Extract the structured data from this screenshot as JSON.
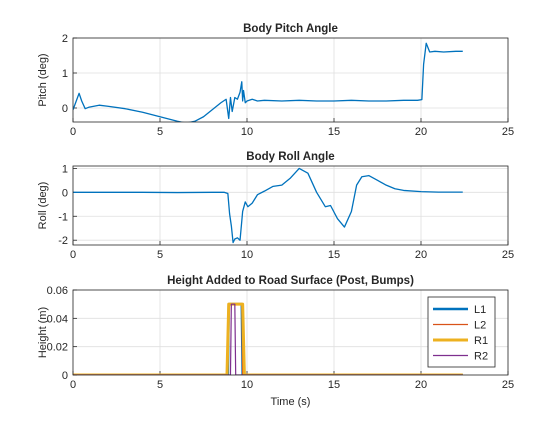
{
  "chart_data": [
    {
      "type": "line",
      "title": "Body Pitch Angle",
      "xlabel": "",
      "ylabel": "Pitch (deg)",
      "xlim": [
        0,
        25
      ],
      "ylim": [
        -0.4,
        2
      ],
      "xticks": [
        "0",
        "5",
        "10",
        "15",
        "20",
        "25"
      ],
      "yticks": [
        "0",
        "1",
        "2"
      ],
      "grid": true,
      "series": [
        {
          "color": "#0072BD",
          "x": [
            0,
            0.15,
            0.35,
            0.5,
            0.7,
            0.9,
            1.2,
            1.5,
            2,
            3,
            4,
            5,
            6,
            6.5,
            7,
            7.5,
            8,
            8.5,
            8.8,
            8.95,
            9.05,
            9.15,
            9.3,
            9.45,
            9.6,
            9.7,
            9.75,
            9.8,
            9.9,
            10,
            10.3,
            10.6,
            11,
            12,
            13,
            14,
            15,
            16,
            17,
            18,
            19,
            19.8,
            20.05,
            20.15,
            20.3,
            20.5,
            20.8,
            21.3,
            22,
            22.4
          ],
          "y": [
            -0.05,
            0.15,
            0.42,
            0.2,
            -0.02,
            0.02,
            0.05,
            0.08,
            0.05,
            -0.02,
            -0.12,
            -0.25,
            -0.38,
            -0.43,
            -0.38,
            -0.25,
            -0.05,
            0.15,
            0.25,
            -0.3,
            0.3,
            -0.1,
            0.3,
            0.25,
            0.45,
            0.75,
            0.2,
            0.5,
            0.15,
            0.2,
            0.25,
            0.2,
            0.22,
            0.2,
            0.22,
            0.2,
            0.2,
            0.22,
            0.2,
            0.2,
            0.22,
            0.22,
            0.24,
            1.25,
            1.85,
            1.6,
            1.62,
            1.6,
            1.62,
            1.62
          ]
        }
      ]
    },
    {
      "type": "line",
      "title": "Body Roll Angle",
      "xlabel": "",
      "ylabel": "Roll (deg)",
      "xlim": [
        0,
        25
      ],
      "ylim": [
        -2.2,
        1.1
      ],
      "xticks": [
        "0",
        "5",
        "10",
        "15",
        "20",
        "25"
      ],
      "yticks": [
        "-2",
        "-1",
        "0",
        "1"
      ],
      "grid": true,
      "series": [
        {
          "color": "#0072BD",
          "x": [
            0,
            2,
            4,
            6,
            8,
            8.7,
            8.9,
            9.0,
            9.1,
            9.2,
            9.3,
            9.45,
            9.6,
            9.75,
            9.9,
            10.05,
            10.3,
            10.6,
            11,
            11.5,
            12,
            12.5,
            13,
            13.5,
            14,
            14.5,
            14.8,
            15.2,
            15.6,
            16,
            16.3,
            16.6,
            17,
            17.5,
            18,
            18.5,
            19,
            20,
            21,
            22,
            22.4
          ],
          "y": [
            0,
            0,
            0,
            -0.01,
            0,
            0,
            -0.05,
            -0.9,
            -1.4,
            -2.1,
            -1.95,
            -1.9,
            -2.0,
            -0.8,
            -0.4,
            -0.6,
            -0.45,
            -0.1,
            0.05,
            0.25,
            0.3,
            0.6,
            1.0,
            0.8,
            0.0,
            -0.6,
            -0.55,
            -1.1,
            -1.45,
            -0.8,
            0.3,
            0.65,
            0.7,
            0.5,
            0.3,
            0.15,
            0.08,
            0.03,
            0.01,
            0.01,
            0.01
          ]
        }
      ]
    },
    {
      "type": "line",
      "title": "Height Added to Road Surface (Post, Bumps)",
      "xlabel": "Time (s)",
      "ylabel": "Height (m)",
      "xlim": [
        0,
        25
      ],
      "ylim": [
        0,
        0.06
      ],
      "xticks": [
        "0",
        "5",
        "10",
        "15",
        "20",
        "25"
      ],
      "yticks": [
        "0",
        "0.02",
        "0.04",
        "0.06"
      ],
      "grid": true,
      "legend": "right",
      "series": [
        {
          "name": "L1",
          "color": "#0072BD",
          "x": [
            0,
            8.9,
            8.95,
            9.7,
            9.75,
            22.4
          ],
          "y": [
            0,
            0,
            0.05,
            0.05,
            0,
            0
          ]
        },
        {
          "name": "L2",
          "color": "#D95319",
          "x": [
            0,
            8.9,
            8.95,
            9.7,
            9.75,
            22.4
          ],
          "y": [
            0,
            0,
            0.05,
            0.05,
            0,
            0
          ]
        },
        {
          "name": "R1",
          "color": "#EDB120",
          "x": [
            0,
            8.85,
            8.95,
            9.75,
            9.85,
            22.4
          ],
          "y": [
            0,
            0,
            0.05,
            0.05,
            0,
            0
          ]
        },
        {
          "name": "R2",
          "color": "#7E2F8E",
          "x": [
            0,
            9.05,
            9.1,
            9.3,
            9.35,
            22.4
          ],
          "y": [
            0,
            0,
            0.05,
            0.05,
            0,
            0
          ]
        }
      ]
    }
  ]
}
